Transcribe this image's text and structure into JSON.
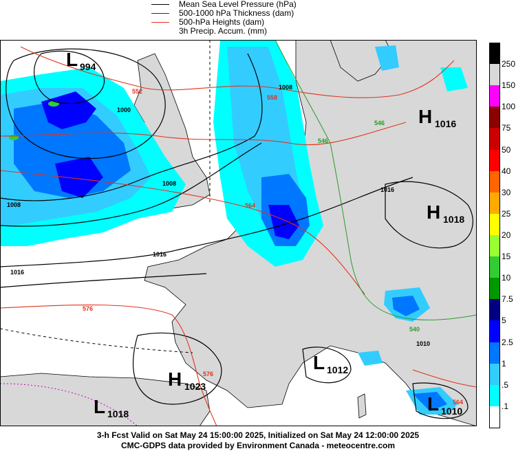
{
  "legend": {
    "items": [
      {
        "label": "Mean Sea Level Pressure (hPa)",
        "color": "#000000"
      },
      {
        "label": "500-1000 hPa Thickness (dam)",
        "color": "#1a1acc"
      },
      {
        "label": "500-hPa Heights (dam)",
        "color": "#e0321e"
      },
      {
        "label": "3h Precip. Accum. (mm)",
        "color": ""
      }
    ]
  },
  "scale": {
    "labels": [
      "250",
      "150",
      "100",
      "75",
      "50",
      "40",
      "30",
      "25",
      "20",
      "15",
      "10",
      "7.5",
      "5",
      "2.5",
      "1",
      ".5",
      ".1"
    ],
    "colors": [
      "#000000",
      "#d8d8d8",
      "#ff00ff",
      "#8b0000",
      "#cc0000",
      "#ff0000",
      "#ff6600",
      "#ffaa00",
      "#ffff00",
      "#99ff33",
      "#33cc33",
      "#009900",
      "#000080",
      "#0000ff",
      "#0077ff",
      "#33ccff",
      "#00ffff",
      "#ffffff"
    ]
  },
  "map": {
    "pressure_centers": [
      {
        "letter": "L",
        "value": "994"
      },
      {
        "letter": "H",
        "value": "1016"
      },
      {
        "letter": "H",
        "value": "1018"
      },
      {
        "letter": "H",
        "value": "1023"
      },
      {
        "letter": "L",
        "value": "1012"
      },
      {
        "letter": "L",
        "value": "1018"
      },
      {
        "letter": "L",
        "value": "1010"
      }
    ],
    "isobar_labels": [
      "1000",
      "1008",
      "1008",
      "1008",
      "1016",
      "1016",
      "1016",
      "1010"
    ],
    "height_labels": [
      "552",
      "558",
      "564",
      "576",
      "576",
      "564"
    ],
    "thickness_labels": [
      "546",
      "546",
      "540"
    ]
  },
  "footer": {
    "line1": "3-h Fcst Valid on Sat May 24 15:00:00 2025, Initialized on Sat May 24 12:00:00 2025",
    "line2": "CMC-GDPS data provided by Environment Canada - meteocentre.com"
  }
}
